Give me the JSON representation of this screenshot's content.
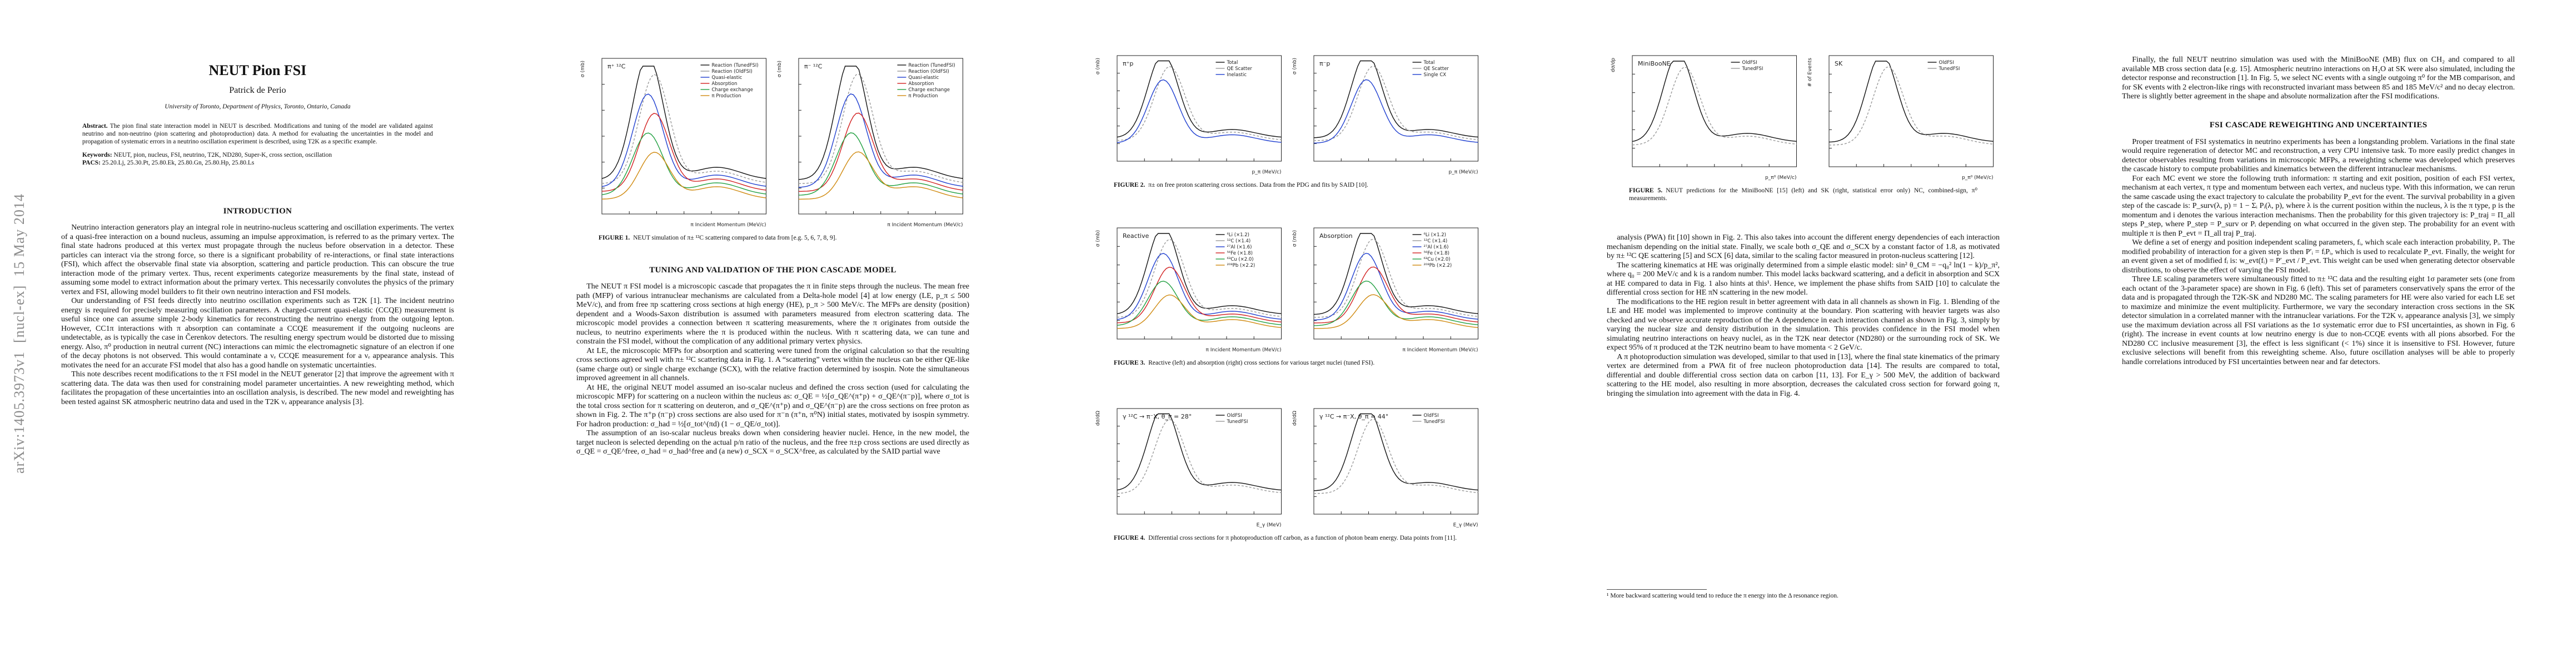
{
  "arxiv_stamp": "arXiv:1405.3973v1  [nucl-ex]  15 May 2014",
  "page1": {
    "title": "NEUT Pion FSI",
    "author": "Patrick de Perio",
    "affiliation": "University of Toronto, Department of Physics, Toronto, Ontario, Canada",
    "abstract_label": "Abstract.",
    "abstract": "The pion final state interaction model in NEUT is described. Modifications and tuning of the model are validated against neutrino and non-neutrino (pion scattering and photoproduction) data. A method for evaluating the uncertainties in the model and propagation of systematic errors in a neutrino oscillation experiment is described, using T2K as a specific example.",
    "keywords_label": "Keywords:",
    "keywords": "NEUT, pion, nucleus, FSI, neutrino, T2K, ND280, Super-K, cross section, oscillation",
    "pacs_label": "PACS:",
    "pacs": "25.20.Lj, 25.30.Pt, 25.80.Ek, 25.80.Gn, 25.80.Hp, 25.80.Ls",
    "section": "INTRODUCTION",
    "paragraphs": [
      "Neutrino interaction generators play an integral role in neutrino-nucleus scattering and oscillation experiments. The vertex of a quasi-free interaction on a bound nucleus, assuming an impulse approximation, is referred to as the primary vertex. The final state hadrons produced at this vertex must propagate through the nucleus before observation in a detector. These particles can interact via the strong force, so there is a significant probability of re-interactions, or final state interactions (FSI), which affect the observable final state via absorption, scattering and particle production. This can obscure the true interaction mode of the primary vertex. Thus, recent experiments categorize measurements by the final state, instead of assuming some model to extract information about the primary vertex. This necessarily convolutes the physics of the primary vertex and FSI, allowing model builders to fit their own neutrino interaction and FSI models.",
      "Our understanding of FSI feeds directly into neutrino oscillation experiments such as T2K [1]. The incident neutrino energy is required for precisely measuring oscillation parameters. A charged-current quasi-elastic (CCQE) measurement is useful since one can assume simple 2-body kinematics for reconstructing the neutrino energy from the outgoing lepton. However, CC1π interactions with π absorption can contaminate a CCQE measurement if the outgoing nucleons are undetectable, as is typically the case in Čerenkov detectors. The resulting energy spectrum would be distorted due to missing energy. Also, π⁰ production in neutral current (NC) interactions can mimic the electromagnetic signature of an electron if one of the decay photons is not observed. This would contaminate a νₑ CCQE measurement for a νₑ appearance analysis. This motivates the need for an accurate FSI model that also has a good handle on systematic uncertainties.",
      "This note describes recent modifications to the π FSI model in the NEUT generator [2] that improve the agreement with π scattering data. The data was then used for constraining model parameter uncertainties. A new reweighting method, which facilitates the propagation of these uncertainties into an oscillation analysis, is described. The new model and reweighting has been tested against SK atmospheric neutrino data and used in the T2K νₑ appearance analysis [3]."
    ]
  },
  "page2": {
    "figure1": {
      "panels": [
        {
          "label": "π⁺ ¹²C",
          "xlabel": "π Incident Momentum (MeV/c)",
          "ylabel": "σ (mb)",
          "legend": [
            "Reaction (TunedFSI)",
            "Reaction (OldFSI)",
            "Quasi-elastic",
            "Absorption",
            "Charge exchange",
            "π Production"
          ]
        },
        {
          "label": "π⁻ ¹²C",
          "xlabel": "π Incident Momentum (MeV/c)",
          "ylabel": "σ (mb)",
          "legend": [
            "Reaction (TunedFSI)",
            "Reaction (OldFSI)",
            "Quasi-elastic",
            "Absorption",
            "Charge exchange",
            "π Production"
          ]
        }
      ],
      "caption_label": "FIGURE 1.",
      "caption": "NEUT simulation of π± ¹²C scattering compared to data from [e.g. 5, 6, 7, 8, 9]."
    },
    "section": "TUNING AND VALIDATION OF THE PION CASCADE MODEL",
    "paragraphs": [
      "The NEUT π FSI model is a microscopic cascade that propagates the π in finite steps through the nucleus. The mean free path (MFP) of various intranuclear mechanisms are calculated from a Delta-hole model [4] at low energy (LE, p_π ≤ 500 MeV/c), and from free πp scattering cross sections at high energy (HE), p_π > 500 MeV/c. The MFPs are density (position) dependent and a Woods-Saxon distribution is assumed with parameters measured from electron scattering data. The microscopic model provides a connection between π scattering measurements, where the π originates from outside the nucleus, to neutrino experiments where the π is produced within the nucleus. With π scattering data, we can tune and constrain the FSI model, without the complication of any additional primary vertex physics.",
      "At LE, the microscopic MFPs for absorption and scattering were tuned from the original calculation so that the resulting cross sections agreed well with π± ¹²C scattering data in Fig. 1. A “scattering” vertex within the nucleus can be either QE-like (same charge out) or single charge exchange (SCX), with the relative fraction determined by isospin. Note the simultaneous improved agreement in all channels.",
      "At HE, the original NEUT model assumed an iso-scalar nucleus and defined the cross section (used for calculating the microscopic MFP) for scattering on a nucleon within the nucleus as: σ_QE = ½[σ_QE^(π⁺p) + σ_QE^(π⁻p)], where σ_tot is the total cross section for π scattering on deuteron, and σ_QE^(π⁺p) and σ_QE^(π⁻p) are the cross sections on free proton as shown in Fig. 2. The π⁺p (π⁻p) cross sections are also used for π⁻n (π⁺n, π⁰N) initial states, motivated by isospin symmetry. For hadron production: σ_had = ½[σ_tot^(πd) (1 − σ_QE/σ_tot)].",
      "The assumption of an iso-scalar nucleus breaks down when considering heavier nuclei. Hence, in the new model, the target nucleon is selected depending on the actual p/n ratio of the nucleus, and the free π±p cross sections are used directly as σ_QE = σ_QE^free, σ_had = σ_had^free and (a new) σ_SCX = σ_SCX^free, as calculated by the SAID partial wave"
    ]
  },
  "page3": {
    "figure2": {
      "panels": [
        {
          "label": "π⁺p",
          "xlabel": "p_π (MeV/c)",
          "ylabel": "σ (mb)",
          "legend": [
            "Total",
            "QE Scatter",
            "Inelastic"
          ]
        },
        {
          "label": "π⁻p",
          "xlabel": "p_π (MeV/c)",
          "ylabel": "σ (mb)",
          "legend": [
            "Total",
            "QE Scatter",
            "Single CX"
          ]
        }
      ],
      "caption_label": "FIGURE 2.",
      "caption": "π± on free proton scattering cross sections. Data from the PDG and fits by SAID [10]."
    },
    "figure3": {
      "panels": [
        {
          "label": "Reactive",
          "xlabel": "π Incident Momentum (MeV/c)",
          "ylabel": "σ (mb)",
          "legend": [
            "⁶Li (×1.2)",
            "¹²C (×1.4)",
            "²⁷Al (×1.6)",
            "⁵⁶Fe (×1.8)",
            "⁶³Cu (×2.0)",
            "²⁰⁸Pb (×2.2)"
          ]
        },
        {
          "label": "Absorption",
          "xlabel": "π Incident Momentum (MeV/c)",
          "ylabel": "σ (mb)",
          "legend": [
            "⁶Li (×1.2)",
            "¹²C (×1.4)",
            "²⁷Al (×1.6)",
            "⁵⁶Fe (×1.8)",
            "⁶³Cu (×2.0)",
            "²⁰⁸Pb (×2.2)"
          ]
        }
      ],
      "caption_label": "FIGURE 3.",
      "caption": "Reactive (left) and absorption (right) cross sections for various target nuclei (tuned FSI)."
    },
    "figure4": {
      "panels": [
        {
          "label": "γ ¹²C → π⁻X, θ_π = 28°",
          "xlabel": "E_γ (MeV)",
          "ylabel": "dσ/dΩ",
          "legend": [
            "OldFSI",
            "TunedFSI"
          ]
        },
        {
          "label": "γ ¹²C → π⁻X, θ_π = 44°",
          "xlabel": "E_γ (MeV)",
          "ylabel": "dσ/dΩ",
          "legend": [
            "OldFSI",
            "TunedFSI"
          ]
        }
      ],
      "caption_label": "FIGURE 4.",
      "caption": "Differential cross sections for π photoproduction off carbon, as a function of photon beam energy. Data points from [11]."
    }
  },
  "page4": {
    "figure5": {
      "panels": [
        {
          "label": "MiniBooNE",
          "xlabel": "p_π⁰ (MeV/c)",
          "ylabel": "dσ/dp",
          "legend": [
            "OldFSI",
            "TunedFSI"
          ]
        },
        {
          "label": "SK",
          "xlabel": "p_π⁰ (MeV/c)",
          "ylabel": "# of Events",
          "legend": [
            "OldFSI",
            "TunedFSI"
          ]
        }
      ],
      "caption_label": "FIGURE 5.",
      "caption": "NEUT predictions for the MiniBooNE [15] (left) and SK (right, statistical error only) NC, combined-sign, π⁰ measurements."
    },
    "paragraphs": [
      "analysis (PWA) fit [10] shown in Fig. 2. This also takes into account the different energy dependencies of each interaction mechanism depending on the initial state. Finally, we scale both σ_QE and σ_SCX by a constant factor of 1.8, as motivated by π± ¹²C QE scattering [5] and SCX [6] data, similar to the scaling factor measured in proton-nucleus scattering [12].",
      "The scattering kinematics at HE was originally determined from a simple elastic model: sin² θ_CM = −q₀² ln(1 − k)/p_π², where q₀ = 200 MeV/c and k is a random number. This model lacks backward scattering, and a deficit in absorption and SCX at HE compared to data in Fig. 1 also hints at this¹. Hence, we implement the phase shifts from SAID [10] to calculate the differential cross section for HE πN scattering in the new model.",
      "The modifications to the HE region result in better agreement with data in all channels as shown in Fig. 1. Blending of the LE and HE model was implemented to improve continuity at the boundary. Pion scattering with heavier targets was also checked and we observe accurate reproduction of the A dependence in each interaction channel as shown in Fig. 3, simply by varying the nuclear size and density distribution in the simulation. This provides confidence in the FSI model when simulating neutrino interactions on heavy nuclei, as in the T2K near detector (ND280) or the surrounding rock of SK. We expect 95% of π produced at the T2K neutrino beam to have momenta < 2 GeV/c.",
      "A π photoproduction simulation was developed, similar to that used in [13], where the final state kinematics of the primary vertex are determined from a PWA fit of free nucleon photoproduction data [14]. The results are compared to total, differential and double differential cross section data on carbon [11, 13]. For E_γ > 500 MeV, the addition of backward scattering to the HE model, also resulting in more absorption, decreases the calculated cross section for forward going π, bringing the simulation into agreement with the data in Fig. 4."
    ],
    "footnote": "¹ More backward scattering would tend to reduce the π energy into the Δ resonance region."
  },
  "page5": {
    "paragraphs_before": [
      "Finally, the full NEUT neutrino simulation was used with the MiniBooNE (MB) flux on CH₂ and compared to all available MB cross section data [e.g. 15]. Atmospheric neutrino interactions on H₂O at SK were also simulated, including the detector response and reconstruction [1]. In Fig. 5, we select NC events with a single outgoing π⁰ for the MB comparison, and for SK events with 2 electron-like rings with reconstructed invariant mass between 85 and 185 MeV/c² and no decay electron. There is slightly better agreement in the shape and absolute normalization after the FSI modifications."
    ],
    "section": "FSI CASCADE REWEIGHTING AND UNCERTAINTIES",
    "paragraphs": [
      "Proper treatment of FSI systematics in neutrino experiments has been a longstanding problem. Variations in the final state would require regeneration of detector MC and reconstruction, a very CPU intensive task. To more easily predict changes in detector observables resulting from variations in microscopic MFPs, a reweighting scheme was developed which preserves the cascade history to compute probabilities and kinematics between the different intranuclear mechanisms.",
      "For each MC event we store the following truth information: π starting and exit position, position of each FSI vertex, mechanism at each vertex, π type and momentum between each vertex, and nucleus type. With this information, we can rerun the same cascade using the exact trajectory to calculate the probability P_evt for the event. The survival probability in a given step of the cascade is: P_surv(λ, p) = 1 − Σᵢ Pᵢ(λ, p), where λ is the current position within the nucleus, λ is the π type, p is the momentum and i denotes the various interaction mechanisms. Then the probability for this given trajectory is: P_traj = Π_all steps P_step, where P_step = P_surv or Pᵢ depending on what occurred in the given step. The probability for an event with multiple π is then P_evt = Π_all traj P_traj.",
      "We define a set of energy and position independent scaling parameters, fᵢ, which scale each interaction probability, Pᵢ. The modified probability of interaction for a given step is then P′ᵢ = fᵢPᵢ, which is used to recalculate P_evt. Finally, the weight for an event given a set of modified fᵢ is: w_evt(fᵢ) = P′_evt / P_evt. This weight can be used when generating detector observable distributions, to observe the effect of varying the FSI model.",
      "Three LE scaling parameters were simultaneously fitted to π± ¹²C data and the resulting eight 1σ parameter sets (one from each octant of the 3-parameter space) are shown in Fig. 6 (left). This set of parameters conservatively spans the error of the data and is propagated through the T2K-SK and ND280 MC. The scaling parameters for HE were also varied for each LE set to maximize and minimize the event multiplicity. Furthermore, we vary the secondary interaction cross sections in the SK detector simulation in a correlated manner with the intranuclear variations. For the T2K νₑ appearance analysis [3], we simply use the maximum deviation across all FSI variations as the 1σ systematic error due to FSI uncertainties, as shown in Fig. 6 (right). The increase in event counts at low neutrino energy is due to non-CCQE events with all pions absorbed. For the ND280 CC inclusive measurement [3], the effect is less significant (< 1%) since it is insensitive to FSI. However, future exclusive selections will benefit from this reweighting scheme. Also, future oscillation analyses will be able to properly handle correlations introduced by FSI uncertainties between near and far detectors."
    ]
  }
}
